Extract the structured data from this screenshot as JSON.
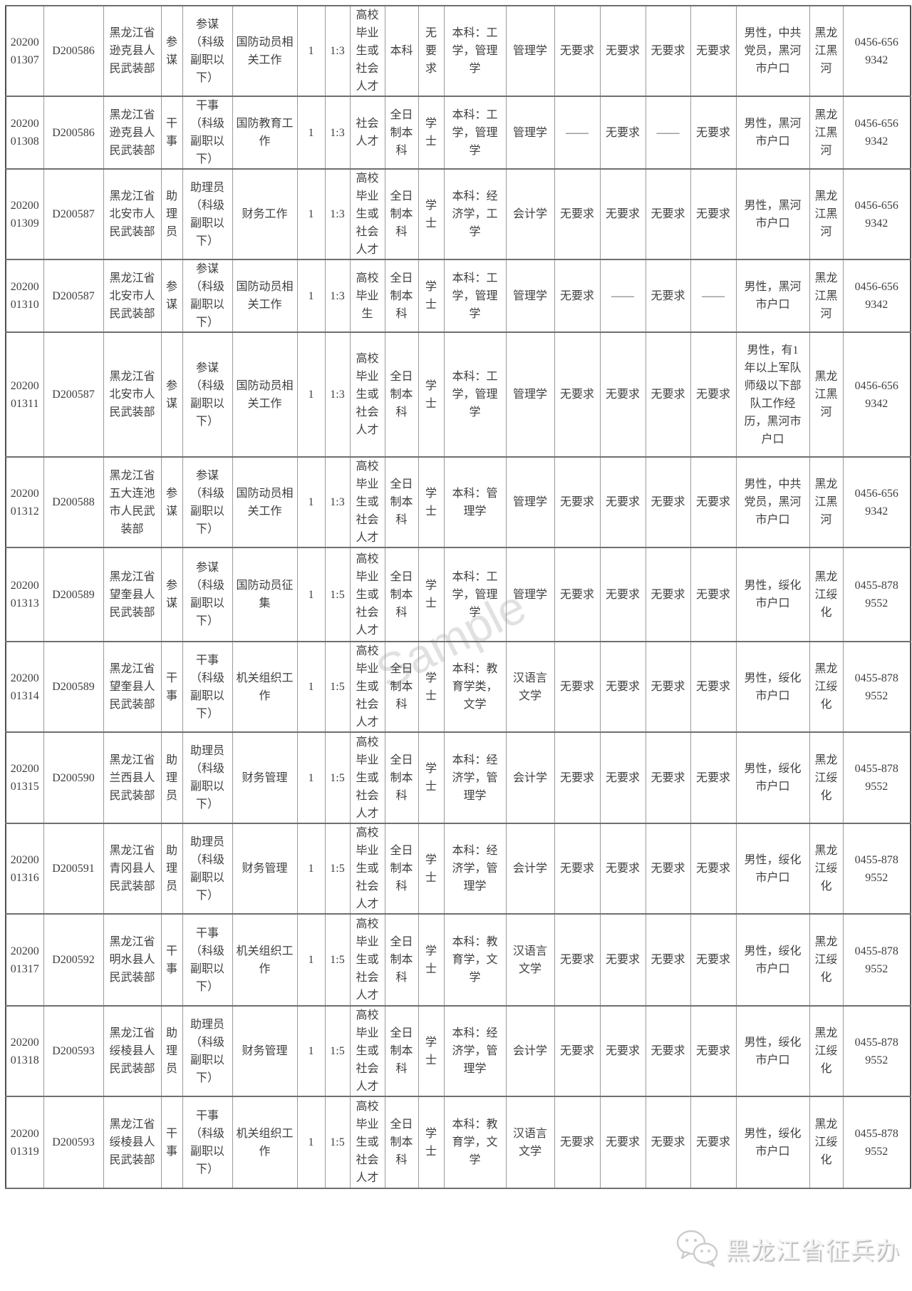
{
  "watermark": "Sample",
  "footer": {
    "brand": "黑龙江省征兵办"
  },
  "table": {
    "rows": [
      {
        "code": "20200\n01307",
        "dept_code": "D200586",
        "dept": "黑龙江省逊克县人民武装部",
        "post": "参谋",
        "rank": "参谋\n（科级副职以下）",
        "duty": "国防动员相关工作",
        "num": "1",
        "ratio": "1:3",
        "source": "高校毕业生或社会人才",
        "edu": "本科",
        "degree": "无要求",
        "majors": "本科：工学，管理学",
        "major": "管理学",
        "req1": "无要求",
        "req2": "无要求",
        "req3": "无要求",
        "req4": "无要求",
        "other": "男性，中共党员，黑河市户口",
        "area": "黑龙江黑河",
        "phone": "0456-656 9342"
      },
      {
        "code": "20200\n01308",
        "dept_code": "D200586",
        "dept": "黑龙江省逊克县人民武装部",
        "post": "干事",
        "rank": "干事\n（科级副职以下）",
        "duty": "国防教育工作",
        "num": "1",
        "ratio": "1:3",
        "source": "社会人才",
        "edu": "全日制本科",
        "degree": "学士",
        "majors": "本科：工学，管理学",
        "major": "管理学",
        "req1": "——",
        "req2": "无要求",
        "req3": "——",
        "req4": "无要求",
        "other": "男性，黑河市户口",
        "area": "黑龙江黑河",
        "phone": "0456-656 9342"
      },
      {
        "code": "20200\n01309",
        "dept_code": "D200587",
        "dept": "黑龙江省北安市人民武装部",
        "post": "助理员",
        "rank": "助理员\n（科级副职以下）",
        "duty": "财务工作",
        "num": "1",
        "ratio": "1:3",
        "source": "高校毕业生或社会人才",
        "edu": "全日制本科",
        "degree": "学士",
        "majors": "本科：经济学，工学",
        "major": "会计学",
        "req1": "无要求",
        "req2": "无要求",
        "req3": "无要求",
        "req4": "无要求",
        "other": "男性，黑河市户口",
        "area": "黑龙江黑河",
        "phone": "0456-656 9342"
      },
      {
        "code": "20200\n01310",
        "dept_code": "D200587",
        "dept": "黑龙江省北安市人民武装部",
        "post": "参谋",
        "rank": "参谋\n（科级副职以下）",
        "duty": "国防动员相关工作",
        "num": "1",
        "ratio": "1:3",
        "source": "高校毕业生",
        "edu": "全日制本科",
        "degree": "学士",
        "majors": "本科：工学，管理学",
        "major": "管理学",
        "req1": "无要求",
        "req2": "——",
        "req3": "无要求",
        "req4": "——",
        "other": "男性，黑河市户口",
        "area": "黑龙江黑河",
        "phone": "0456-656 9342"
      },
      {
        "code": "20200\n01311",
        "dept_code": "D200587",
        "dept": "黑龙江省北安市人民武装部",
        "post": "参谋",
        "rank": "参谋\n（科级副职以下）",
        "duty": "国防动员相关工作",
        "num": "1",
        "ratio": "1:3",
        "source": "高校毕业生或社会人才",
        "edu": "全日制本科",
        "degree": "学士",
        "majors": "本科：工学，管理学",
        "major": "管理学",
        "req1": "无要求",
        "req2": "无要求",
        "req3": "无要求",
        "req4": "无要求",
        "other": "男性，有1年以上军队师级以下部队工作经历，黑河市户口",
        "area": "黑龙江黑河",
        "phone": "0456-656 9342"
      },
      {
        "code": "20200\n01312",
        "dept_code": "D200588",
        "dept": "黑龙江省五大连池市人民武装部",
        "post": "参谋",
        "rank": "参谋\n（科级副职以下）",
        "duty": "国防动员相关工作",
        "num": "1",
        "ratio": "1:3",
        "source": "高校毕业生或社会人才",
        "edu": "全日制本科",
        "degree": "学士",
        "majors": "本科：管理学",
        "major": "管理学",
        "req1": "无要求",
        "req2": "无要求",
        "req3": "无要求",
        "req4": "无要求",
        "other": "男性，中共党员，黑河市户口",
        "area": "黑龙江黑河",
        "phone": "0456-656 9342"
      },
      {
        "code": "20200\n01313",
        "dept_code": "D200589",
        "dept": "黑龙江省望奎县人民武装部",
        "post": "参谋",
        "rank": "参谋\n（科级副职以下）",
        "duty": "国防动员征集",
        "num": "1",
        "ratio": "1:5",
        "source": "高校毕业生或社会人才",
        "edu": "全日制本科",
        "degree": "学士",
        "majors": "本科：工学，管理学",
        "major": "管理学",
        "req1": "无要求",
        "req2": "无要求",
        "req3": "无要求",
        "req4": "无要求",
        "other": "男性，绥化市户口",
        "area": "黑龙江绥化",
        "phone": "0455-878 9552"
      },
      {
        "code": "20200\n01314",
        "dept_code": "D200589",
        "dept": "黑龙江省望奎县人民武装部",
        "post": "干事",
        "rank": "干事\n（科级副职以下）",
        "duty": "机关组织工作",
        "num": "1",
        "ratio": "1:5",
        "source": "高校毕业生或社会人才",
        "edu": "全日制本科",
        "degree": "学士",
        "majors": "本科：教育学类，文学",
        "major": "汉语言文学",
        "req1": "无要求",
        "req2": "无要求",
        "req3": "无要求",
        "req4": "无要求",
        "other": "男性，绥化市户口",
        "area": "黑龙江绥化",
        "phone": "0455-878 9552"
      },
      {
        "code": "20200\n01315",
        "dept_code": "D200590",
        "dept": "黑龙江省兰西县人民武装部",
        "post": "助理员",
        "rank": "助理员\n（科级副职以下）",
        "duty": "财务管理",
        "num": "1",
        "ratio": "1:5",
        "source": "高校毕业生或社会人才",
        "edu": "全日制本科",
        "degree": "学士",
        "majors": "本科：经济学，管理学",
        "major": "会计学",
        "req1": "无要求",
        "req2": "无要求",
        "req3": "无要求",
        "req4": "无要求",
        "other": "男性，绥化市户口",
        "area": "黑龙江绥化",
        "phone": "0455-878 9552"
      },
      {
        "code": "20200\n01316",
        "dept_code": "D200591",
        "dept": "黑龙江省青冈县人民武装部",
        "post": "助理员",
        "rank": "助理员\n（科级副职以下）",
        "duty": "财务管理",
        "num": "1",
        "ratio": "1:5",
        "source": "高校毕业生或社会人才",
        "edu": "全日制本科",
        "degree": "学士",
        "majors": "本科：经济学，管理学",
        "major": "会计学",
        "req1": "无要求",
        "req2": "无要求",
        "req3": "无要求",
        "req4": "无要求",
        "other": "男性，绥化市户口",
        "area": "黑龙江绥化",
        "phone": "0455-878 9552"
      },
      {
        "code": "20200\n01317",
        "dept_code": "D200592",
        "dept": "黑龙江省明水县人民武装部",
        "post": "干事",
        "rank": "干事\n（科级副职以下）",
        "duty": "机关组织工作",
        "num": "1",
        "ratio": "1:5",
        "source": "高校毕业生或社会人才",
        "edu": "全日制本科",
        "degree": "学士",
        "majors": "本科：教育学，文学",
        "major": "汉语言文学",
        "req1": "无要求",
        "req2": "无要求",
        "req3": "无要求",
        "req4": "无要求",
        "other": "男性，绥化市户口",
        "area": "黑龙江绥化",
        "phone": "0455-878 9552"
      },
      {
        "code": "20200\n01318",
        "dept_code": "D200593",
        "dept": "黑龙江省绥棱县人民武装部",
        "post": "助理员",
        "rank": "助理员\n（科级副职以下）",
        "duty": "财务管理",
        "num": "1",
        "ratio": "1:5",
        "source": "高校毕业生或社会人才",
        "edu": "全日制本科",
        "degree": "学士",
        "majors": "本科：经济学，管理学",
        "major": "会计学",
        "req1": "无要求",
        "req2": "无要求",
        "req3": "无要求",
        "req4": "无要求",
        "other": "男性，绥化市户口",
        "area": "黑龙江绥化",
        "phone": "0455-878 9552"
      },
      {
        "code": "20200\n01319",
        "dept_code": "D200593",
        "dept": "黑龙江省绥棱县人民武装部",
        "post": "干事",
        "rank": "干事\n（科级副职以下）",
        "duty": "机关组织工作",
        "num": "1",
        "ratio": "1:5",
        "source": "高校毕业生或社会人才",
        "edu": "全日制本科",
        "degree": "学士",
        "majors": "本科：教育学，文学",
        "major": "汉语言文学",
        "req1": "无要求",
        "req2": "无要求",
        "req3": "无要求",
        "req4": "无要求",
        "other": "男性，绥化市户口",
        "area": "黑龙江绥化",
        "phone": "0455-878 9552"
      }
    ]
  }
}
